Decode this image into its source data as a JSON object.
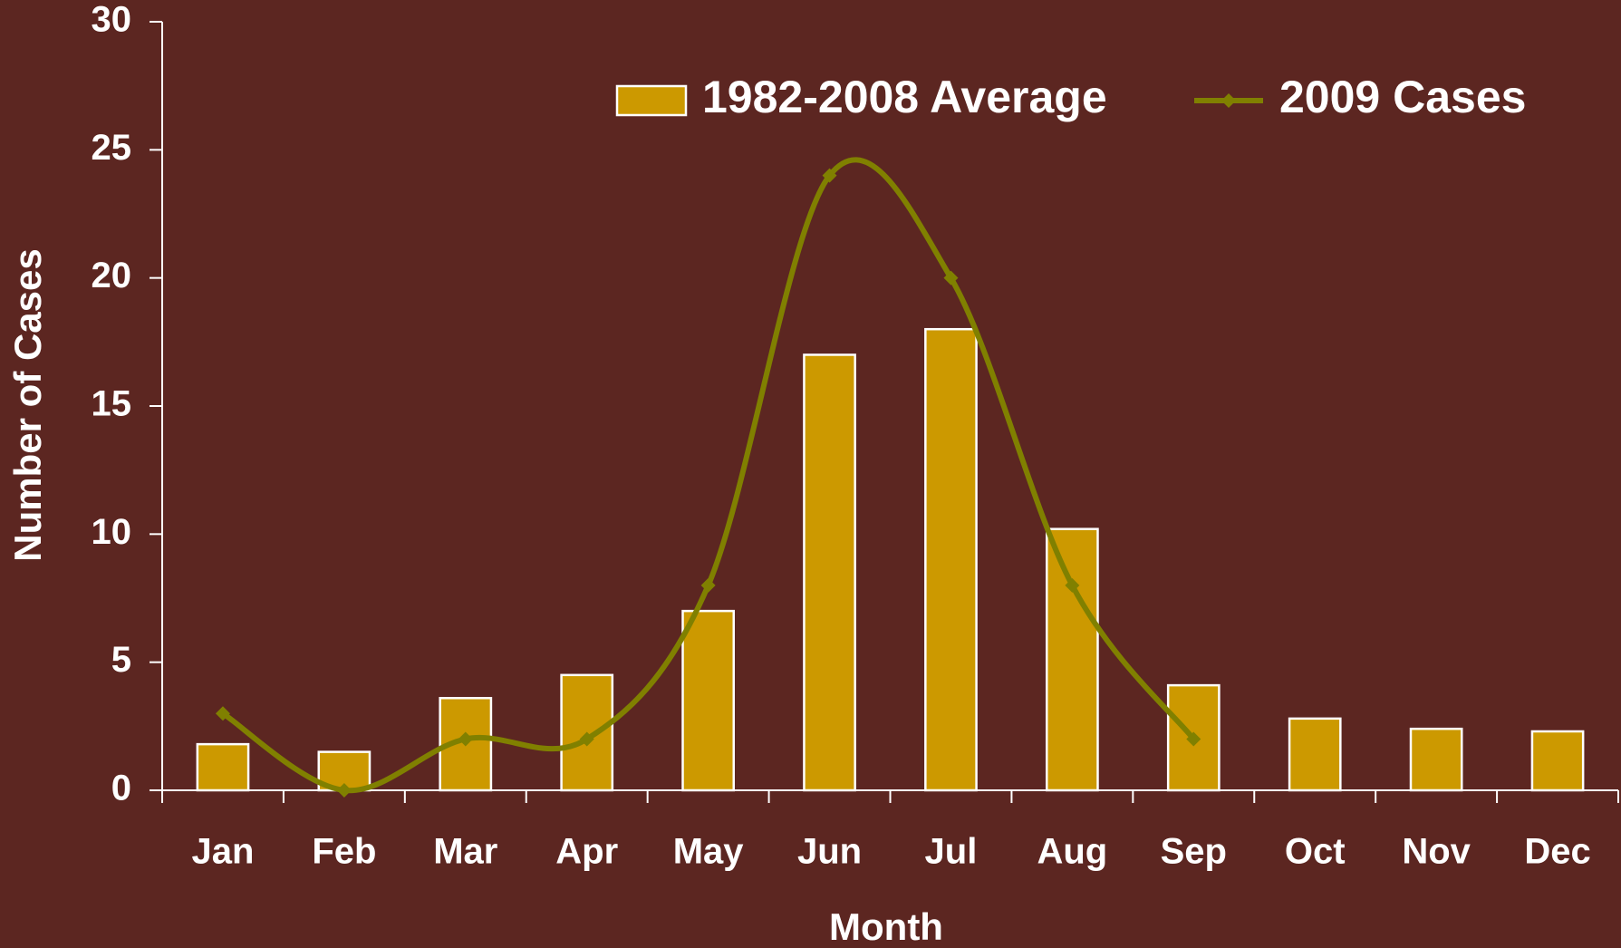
{
  "chart_data": {
    "type": "bar",
    "categories": [
      "Jan",
      "Feb",
      "Mar",
      "Apr",
      "May",
      "Jun",
      "Jul",
      "Aug",
      "Sep",
      "Oct",
      "Nov",
      "Dec"
    ],
    "series": [
      {
        "name": "1982-2008 Average",
        "type": "bar",
        "color": "#cc9900",
        "values": [
          1.8,
          1.5,
          3.6,
          4.5,
          7.0,
          17.0,
          18.0,
          10.2,
          4.1,
          2.8,
          2.4,
          2.3
        ]
      },
      {
        "name": "2009 Cases",
        "type": "line",
        "color": "#808000",
        "values": [
          3,
          0,
          2,
          2,
          8,
          24,
          20,
          8,
          2,
          null,
          null,
          null
        ]
      }
    ],
    "xlabel": "Month",
    "ylabel": "Number of Cases",
    "ylim": [
      0,
      30
    ],
    "yticks": [
      0,
      5,
      10,
      15,
      20,
      25,
      30
    ],
    "grid": false,
    "legend": "top-right"
  }
}
